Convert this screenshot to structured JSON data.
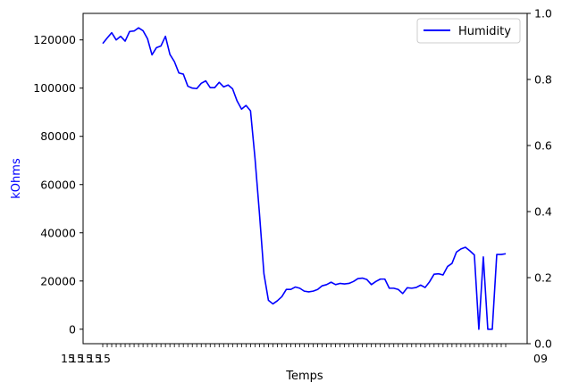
{
  "chart_data": {
    "type": "line",
    "title": "",
    "xlabel": "Temps",
    "ylabel": "kOhms",
    "y2lim": [
      0.0,
      1.0
    ],
    "y2_ticks": [
      "0.0",
      "0.2",
      "0.4",
      "0.6",
      "0.8",
      "1.0"
    ],
    "ylim": [
      -6000,
      131000
    ],
    "y_ticks": [
      0,
      20000,
      40000,
      60000,
      80000,
      100000,
      120000
    ],
    "x_tick_labels_visible": [
      "15",
      "15",
      "15",
      "15",
      "15",
      "09"
    ],
    "legend": {
      "position": "top-right",
      "entries": [
        "Humidity"
      ]
    },
    "colors": {
      "series": "#0000ff",
      "ylabel": "#0000ff"
    },
    "grid": false,
    "series": [
      {
        "name": "Humidity",
        "values": [
          118500,
          120800,
          123000,
          120000,
          121500,
          119500,
          123500,
          123700,
          125000,
          123800,
          120500,
          113800,
          116800,
          117500,
          121500,
          114000,
          111000,
          106300,
          105800,
          100800,
          100000,
          99800,
          102000,
          103000,
          100200,
          100200,
          102400,
          100500,
          101300,
          99700,
          94700,
          91300,
          92800,
          90600,
          71000,
          48000,
          23000,
          12000,
          10500,
          11800,
          13500,
          16500,
          16500,
          17500,
          17000,
          15800,
          15500,
          15800,
          16500,
          18000,
          18500,
          19500,
          18500,
          19000,
          18800,
          19000,
          19800,
          21000,
          21200,
          20600,
          18500,
          19800,
          20800,
          20800,
          17000,
          17000,
          16500,
          14800,
          17200,
          17000,
          17300,
          18300,
          17300,
          19700,
          22800,
          23000,
          22500,
          26000,
          27300,
          32000,
          33300,
          34000,
          32500,
          30800,
          0,
          30000,
          0,
          0,
          31000,
          31000,
          31300
        ]
      }
    ]
  }
}
